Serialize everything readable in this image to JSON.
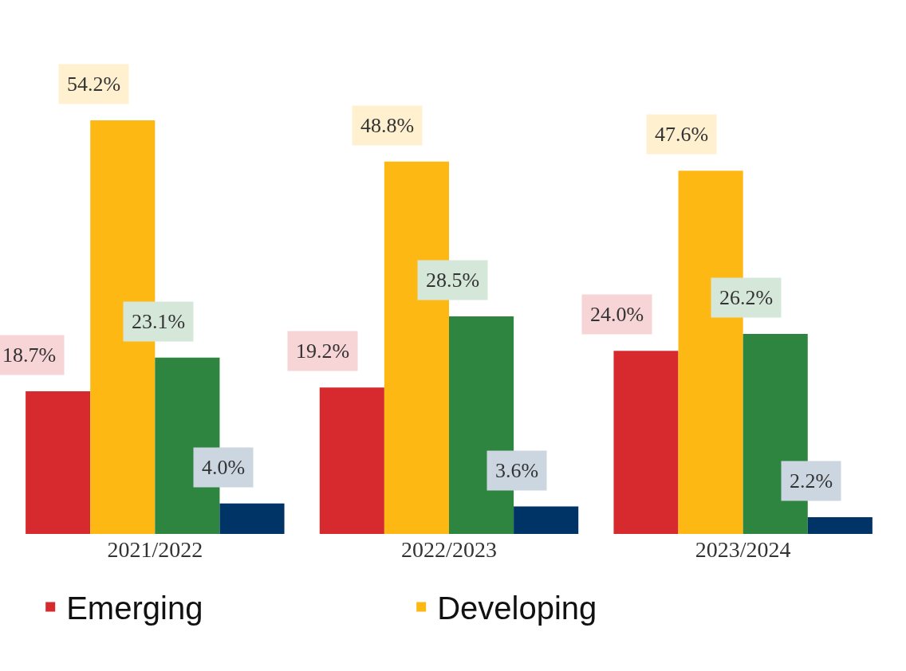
{
  "chart_data": {
    "type": "bar",
    "categories": [
      "2021/2022",
      "2022/2023",
      "2023/2024"
    ],
    "series": [
      {
        "name": "Emerging",
        "color": "#d62a2f",
        "values": [
          18.7,
          19.2,
          24.0
        ],
        "value_labels": [
          "18.7%",
          "19.2%",
          "24.0%"
        ]
      },
      {
        "name": "Developing",
        "color": "#fdb813",
        "values": [
          54.2,
          48.8,
          47.6
        ],
        "value_labels": [
          "54.2%",
          "48.8%",
          "47.6%"
        ]
      },
      {
        "color": "#2e8540",
        "values": [
          23.1,
          28.5,
          26.2
        ],
        "value_labels": [
          "23.1%",
          "28.5%",
          "26.2%"
        ]
      },
      {
        "color": "#003366",
        "values": [
          4.0,
          3.6,
          2.2
        ],
        "value_labels": [
          "4.0%",
          "3.6%",
          "2.2%"
        ]
      }
    ],
    "tick_labels": "x",
    "legend": "bottom"
  }
}
